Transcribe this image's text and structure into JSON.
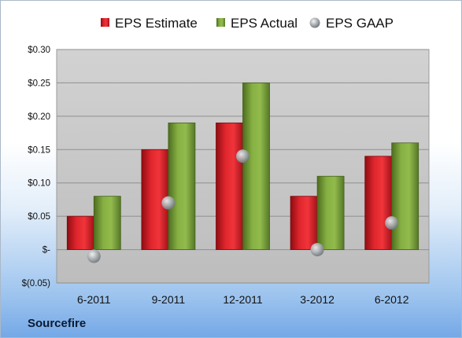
{
  "source_label": "Sourcefire",
  "colors": {
    "estimate": "#d8232a",
    "actual": "#78a33a",
    "gaap": "#a0a4a8",
    "plot_bg": "#c9c9c9",
    "accent": "#74a8e6"
  },
  "chart_data": {
    "type": "bar",
    "title": "",
    "xlabel": "",
    "ylabel": "",
    "categories": [
      "6-2011",
      "9-2011",
      "12-2011",
      "3-2012",
      "6-2012"
    ],
    "series": [
      {
        "name": "EPS Estimate",
        "kind": "bar",
        "values": [
          0.05,
          0.15,
          0.19,
          0.08,
          0.14
        ]
      },
      {
        "name": "EPS Actual",
        "kind": "bar",
        "values": [
          0.08,
          0.19,
          0.25,
          0.11,
          0.16
        ]
      },
      {
        "name": "EPS GAAP",
        "kind": "marker",
        "values": [
          -0.01,
          0.07,
          0.14,
          0.0,
          0.04
        ]
      }
    ],
    "ylim": [
      -0.05,
      0.3
    ],
    "yticks": [
      {
        "value": 0.3,
        "label": "$0.30"
      },
      {
        "value": 0.25,
        "label": "$0.25"
      },
      {
        "value": 0.2,
        "label": "$0.20"
      },
      {
        "value": 0.15,
        "label": "$0.15"
      },
      {
        "value": 0.1,
        "label": "$0.10"
      },
      {
        "value": 0.05,
        "label": "$0.05"
      },
      {
        "value": 0.0,
        "label": "$-"
      },
      {
        "value": -0.05,
        "label": "$(0.05)"
      }
    ],
    "grid": true,
    "legend_position": "top"
  }
}
